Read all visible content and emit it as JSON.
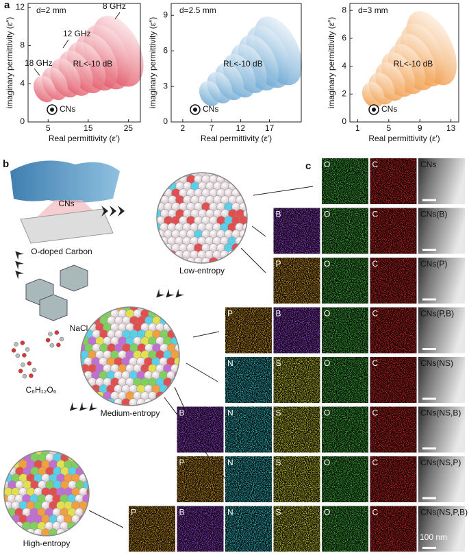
{
  "panel_labels": {
    "a": "a",
    "b": "b",
    "c": "c"
  },
  "chart_data": [
    {
      "type": "ellipse",
      "title": "d=2 mm",
      "xlabel": "Real permittivity (ε′)",
      "ylabel": "imaginary permittivity (ε″)",
      "xlim": [
        0,
        28
      ],
      "ylim": [
        0,
        12.4
      ],
      "xticks": [
        5,
        15,
        25
      ],
      "yticks": [
        0,
        4,
        8,
        12
      ],
      "color": "#d9263a",
      "x": [
        4.1,
        6.7,
        9.3,
        11.9,
        14.5,
        17.1,
        19.7,
        22.4
      ],
      "values": [
        3.45,
        4.0,
        4.6,
        5.1,
        5.7,
        6.3,
        6.8,
        7.4
      ],
      "widths": [
        5.1,
        5.9,
        6.8,
        7.6,
        8.5,
        9.3,
        10.2,
        11
      ],
      "heights": [
        2.9,
        3.6,
        4.3,
        5.0,
        5.7,
        6.4,
        7.2,
        7.9
      ],
      "frequency_labels": [
        "8 GHz",
        "12 GHz",
        "18 GHz"
      ],
      "region_label": "RL<-10 dB",
      "legend": "CNs"
    },
    {
      "type": "ellipse",
      "title": "d=2.5 mm",
      "xlabel": "Real permittivity (ε′)",
      "ylabel": "imaginary permittivity (ε″)",
      "xlim": [
        0,
        22.5
      ],
      "ylim": [
        0,
        10
      ],
      "xticks": [
        2,
        7,
        12,
        17
      ],
      "yticks": [
        0,
        3,
        6,
        9
      ],
      "color": "#3d8cc4",
      "x": [
        6.7,
        8.4,
        10.1,
        11.8,
        13.4,
        15.1,
        16.8,
        18.5
      ],
      "values": [
        2.4,
        2.9,
        3.4,
        3.9,
        4.5,
        5.0,
        5.5,
        6.0
      ],
      "widths": [
        3.5,
        4.0,
        4.5,
        5.0,
        5.5,
        6.0,
        6.5,
        7.0
      ],
      "heights": [
        2.2,
        2.8,
        3.3,
        3.9,
        4.4,
        5.0,
        5.6,
        6.2
      ],
      "region_label": "RL<-10 dB",
      "legend": "CNs"
    },
    {
      "type": "ellipse",
      "title": "d=3 mm",
      "xlabel": "Real permittivity (ε′)",
      "ylabel": "imaginary permittivity (ε″)",
      "xlim": [
        0,
        14
      ],
      "ylim": [
        0,
        8.5
      ],
      "xticks": [
        1,
        5,
        9,
        13
      ],
      "yticks": [
        0,
        2,
        4,
        6,
        8
      ],
      "color": "#ec7d10",
      "x": [
        3.0,
        4.1,
        5.2,
        6.2,
        7.3,
        8.4,
        9.4,
        10.5
      ],
      "values": [
        1.95,
        2.4,
        2.9,
        3.4,
        3.8,
        4.3,
        4.8,
        5.3
      ],
      "widths": [
        2.7,
        3.1,
        3.5,
        3.8,
        4.2,
        4.6,
        4.9,
        5.3
      ],
      "heights": [
        1.9,
        2.4,
        2.9,
        3.4,
        3.8,
        4.3,
        4.8,
        5.7
      ],
      "region_label": "RL<-10 dB",
      "legend": "CNs"
    }
  ],
  "scheme": {
    "cns": "CNs",
    "carbon": "O-doped Carbon",
    "salt": "NaCl",
    "glucose": "C₆H₁₂O₆",
    "low": "Low-entropy",
    "medium": "Medium-entropy",
    "high": "High-entropy"
  },
  "mapping": {
    "scale_bar": "100 nm",
    "rows": [
      [
        {
          "label": "O",
          "color": "#3fbf3a"
        },
        {
          "label": "C",
          "color": "#e0241e"
        },
        {
          "label": "CNs",
          "color": "#9a9a9a"
        }
      ],
      [
        {
          "label": "B",
          "color": "#a040e0"
        },
        {
          "label": "O",
          "color": "#3fbf3a"
        },
        {
          "label": "C",
          "color": "#e0241e"
        },
        {
          "label": "CNs(B)",
          "color": "#9a9a9a"
        }
      ],
      [
        {
          "label": "P",
          "color": "#e0a020"
        },
        {
          "label": "O",
          "color": "#3fbf3a"
        },
        {
          "label": "C",
          "color": "#e0241e"
        },
        {
          "label": "CNs(P)",
          "color": "#9a9a9a"
        }
      ],
      [
        {
          "label": "P",
          "color": "#e0a020"
        },
        {
          "label": "B",
          "color": "#a040e0"
        },
        {
          "label": "O",
          "color": "#3fbf3a"
        },
        {
          "label": "C",
          "color": "#e0241e"
        },
        {
          "label": "CNs(P,B)",
          "color": "#9a9a9a"
        }
      ],
      [
        {
          "label": "N",
          "color": "#30c8d0"
        },
        {
          "label": "S",
          "color": "#d8d830"
        },
        {
          "label": "O",
          "color": "#3fbf3a"
        },
        {
          "label": "C",
          "color": "#e0241e"
        },
        {
          "label": "CNs(NS)",
          "color": "#9a9a9a"
        }
      ],
      [
        {
          "label": "B",
          "color": "#a040e0"
        },
        {
          "label": "N",
          "color": "#30c8d0"
        },
        {
          "label": "S",
          "color": "#d8d830"
        },
        {
          "label": "O",
          "color": "#3fbf3a"
        },
        {
          "label": "C",
          "color": "#e0241e"
        },
        {
          "label": "CNs(NS,B)",
          "color": "#9a9a9a"
        }
      ],
      [
        {
          "label": "P",
          "color": "#e0a020"
        },
        {
          "label": "N",
          "color": "#30c8d0"
        },
        {
          "label": "S",
          "color": "#d8d830"
        },
        {
          "label": "O",
          "color": "#3fbf3a"
        },
        {
          "label": "C",
          "color": "#e0241e"
        },
        {
          "label": "CNs(NS,P)",
          "color": "#9a9a9a"
        }
      ],
      [
        {
          "label": "P",
          "color": "#e0a020"
        },
        {
          "label": "B",
          "color": "#a040e0"
        },
        {
          "label": "N",
          "color": "#30c8d0"
        },
        {
          "label": "S",
          "color": "#d8d830"
        },
        {
          "label": "O",
          "color": "#3fbf3a"
        },
        {
          "label": "C",
          "color": "#e0241e"
        },
        {
          "label": "CNs(NS,P,B)",
          "color": "#9a9a9a"
        }
      ]
    ]
  }
}
